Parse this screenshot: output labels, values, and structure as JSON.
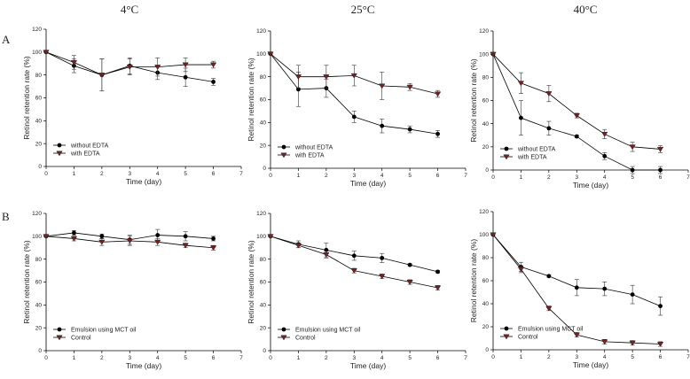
{
  "column_headers": [
    "4°C",
    "25°C",
    "40°C"
  ],
  "row_labels": [
    "A",
    "B"
  ],
  "chart_data": [
    {
      "type": "line",
      "row": "A",
      "col": 0,
      "xlabel": "Time (day)",
      "ylabel": "Retinol retention rate (%)",
      "xlim": [
        0,
        7
      ],
      "ylim": [
        0,
        120
      ],
      "xticks": [
        0,
        1,
        2,
        3,
        4,
        5,
        6,
        7
      ],
      "yticks": [
        0,
        20,
        40,
        60,
        80,
        100,
        120
      ],
      "legend_position": "bottom-left",
      "series": [
        {
          "name": "without EDTA",
          "marker": "circle",
          "color": "#000000",
          "x": [
            0,
            1,
            2,
            3,
            4,
            5,
            6
          ],
          "y": [
            100,
            88,
            80,
            88,
            82,
            78,
            74
          ],
          "err": [
            0,
            6,
            14,
            7,
            6,
            8,
            3
          ]
        },
        {
          "name": "with EDTA",
          "marker": "triangle-down",
          "color": "#7a1e1e",
          "x": [
            0,
            1,
            2,
            3,
            4,
            5,
            6
          ],
          "y": [
            100,
            91,
            80,
            87,
            87,
            89,
            89
          ],
          "err": [
            0,
            6,
            14,
            7,
            8,
            6,
            3
          ]
        }
      ]
    },
    {
      "type": "line",
      "row": "A",
      "col": 1,
      "xlabel": "Time (day)",
      "ylabel": "Retinol retention rate (%)",
      "xlim": [
        0,
        7
      ],
      "ylim": [
        0,
        120
      ],
      "xticks": [
        0,
        1,
        2,
        3,
        4,
        5,
        6,
        7
      ],
      "yticks": [
        0,
        20,
        40,
        60,
        80,
        100,
        120
      ],
      "legend_position": "bottom-left",
      "series": [
        {
          "name": "without EDTA",
          "marker": "circle",
          "color": "#000000",
          "x": [
            0,
            1,
            2,
            3,
            4,
            5,
            6
          ],
          "y": [
            100,
            69,
            70,
            45,
            37,
            34,
            30
          ],
          "err": [
            0,
            15,
            8,
            5,
            6,
            3,
            3
          ]
        },
        {
          "name": "with EDTA",
          "marker": "triangle-down",
          "color": "#7a1e1e",
          "x": [
            0,
            1,
            2,
            3,
            4,
            5,
            6
          ],
          "y": [
            100,
            80,
            80,
            81,
            72,
            71,
            65
          ],
          "err": [
            0,
            10,
            10,
            9,
            12,
            3,
            3
          ]
        }
      ]
    },
    {
      "type": "line",
      "row": "A",
      "col": 2,
      "xlabel": "Time (day)",
      "ylabel": "Retinol retention rate (%)",
      "xlim": [
        0,
        7
      ],
      "ylim": [
        0,
        120
      ],
      "xticks": [
        0,
        1,
        2,
        3,
        4,
        5,
        6,
        7
      ],
      "yticks": [
        0,
        20,
        40,
        60,
        80,
        100,
        120
      ],
      "legend_position": "bottom-left",
      "series": [
        {
          "name": "without EDTA",
          "marker": "circle",
          "color": "#000000",
          "x": [
            0,
            1,
            2,
            3,
            4,
            5,
            6
          ],
          "y": [
            100,
            45,
            36,
            29,
            12,
            0,
            0
          ],
          "err": [
            0,
            15,
            6,
            1,
            3,
            3,
            3
          ]
        },
        {
          "name": "with EDTA",
          "marker": "triangle-down",
          "color": "#7a1e1e",
          "x": [
            0,
            1,
            2,
            3,
            4,
            5,
            6
          ],
          "y": [
            100,
            75,
            66,
            47,
            31,
            20,
            18
          ],
          "err": [
            0,
            9,
            7,
            2,
            4,
            4,
            3
          ]
        }
      ]
    },
    {
      "type": "line",
      "row": "B",
      "col": 0,
      "xlabel": "Time (day)",
      "ylabel": "Retinol retention rate (%)",
      "xlim": [
        0,
        7
      ],
      "ylim": [
        0,
        120
      ],
      "xticks": [
        0,
        1,
        2,
        3,
        4,
        5,
        6,
        7
      ],
      "yticks": [
        0,
        20,
        40,
        60,
        80,
        100,
        120
      ],
      "legend_position": "bottom-left",
      "series": [
        {
          "name": "Emulsion using MCT oil",
          "marker": "circle",
          "color": "#000000",
          "x": [
            0,
            1,
            2,
            3,
            4,
            5,
            6
          ],
          "y": [
            100,
            103,
            100,
            97,
            101,
            100,
            98
          ],
          "err": [
            0,
            2,
            2,
            4,
            5,
            4,
            2
          ]
        },
        {
          "name": "Control",
          "marker": "triangle-down",
          "color": "#7a1e1e",
          "x": [
            0,
            1,
            2,
            3,
            4,
            5,
            6
          ],
          "y": [
            100,
            98,
            95,
            96,
            95,
            92,
            90
          ],
          "err": [
            0,
            2,
            3,
            4,
            3,
            2,
            2
          ]
        }
      ]
    },
    {
      "type": "line",
      "row": "B",
      "col": 1,
      "xlabel": "Time (day)",
      "ylabel": "Retinol retention rate (%)",
      "xlim": [
        0,
        7
      ],
      "ylim": [
        0,
        120
      ],
      "xticks": [
        0,
        1,
        2,
        3,
        4,
        5,
        6,
        7
      ],
      "yticks": [
        0,
        20,
        40,
        60,
        80,
        100,
        120
      ],
      "legend_position": "bottom-left",
      "series": [
        {
          "name": "Emulsion using MCT oil",
          "marker": "circle",
          "color": "#000000",
          "x": [
            0,
            1,
            2,
            3,
            4,
            5,
            6
          ],
          "y": [
            100,
            93,
            88,
            83,
            81,
            75,
            69
          ],
          "err": [
            0,
            3,
            6,
            4,
            4,
            1,
            1
          ]
        },
        {
          "name": "Control",
          "marker": "triangle-down",
          "color": "#7a1e1e",
          "x": [
            0,
            1,
            2,
            3,
            4,
            5,
            6
          ],
          "y": [
            100,
            92,
            84,
            70,
            65,
            60,
            55
          ],
          "err": [
            0,
            2,
            3,
            2,
            2,
            2,
            2
          ]
        }
      ]
    },
    {
      "type": "line",
      "row": "B",
      "col": 2,
      "xlabel": "Time (day)",
      "ylabel": "Retinol retention rate (%)",
      "xlim": [
        0,
        7
      ],
      "ylim": [
        0,
        120
      ],
      "xticks": [
        0,
        1,
        2,
        3,
        4,
        5,
        6,
        7
      ],
      "yticks": [
        0,
        20,
        40,
        60,
        80,
        100,
        120
      ],
      "legend_position": "bottom-left",
      "series": [
        {
          "name": "Emulsion using MCT oil",
          "marker": "circle",
          "color": "#000000",
          "x": [
            0,
            1,
            2,
            3,
            4,
            5,
            6
          ],
          "y": [
            100,
            72,
            64,
            54,
            53,
            48,
            38
          ],
          "err": [
            0,
            4,
            1,
            7,
            6,
            8,
            8
          ]
        },
        {
          "name": "Control",
          "marker": "triangle-down",
          "color": "#7a1e1e",
          "x": [
            0,
            1,
            2,
            3,
            4,
            5,
            6
          ],
          "y": [
            100,
            70,
            36,
            13,
            7,
            6,
            5
          ],
          "err": [
            0,
            3,
            2,
            2,
            2,
            2,
            2
          ]
        }
      ]
    }
  ]
}
